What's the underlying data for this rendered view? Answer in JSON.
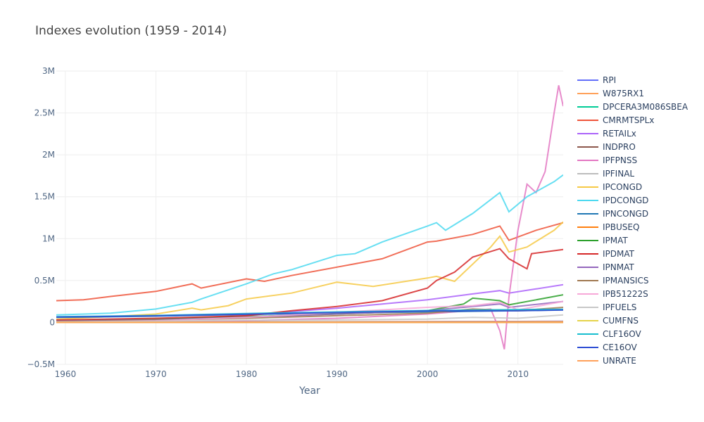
{
  "chart_data": {
    "type": "line",
    "title": "Indexes evolution (1959 - 2014)",
    "xlabel": "Year",
    "ylabel": "",
    "xlim": [
      1959,
      2015
    ],
    "ylim": [
      -500000,
      3000000
    ],
    "x_ticks": [
      1960,
      1970,
      1980,
      1990,
      2000,
      2010
    ],
    "x_tick_labels": [
      "1960",
      "1970",
      "1980",
      "1990",
      "2000",
      "2010"
    ],
    "y_ticks": [
      -500000,
      0,
      500000,
      1000000,
      1500000,
      2000000,
      2500000,
      3000000
    ],
    "y_tick_labels": [
      "−0.5M",
      "0",
      "0.5M",
      "1M",
      "1.5M",
      "2M",
      "2.5M",
      "3M"
    ],
    "grid": true,
    "legend_position": "right",
    "series": [
      {
        "name": "RPI",
        "color": "#636efa",
        "x": [
          1959,
          1970,
          1980,
          1990,
          2000,
          2010,
          2015
        ],
        "y": [
          2500,
          4000,
          6000,
          8000,
          10000,
          12000,
          13500
        ]
      },
      {
        "name": "W875RX1",
        "color": "#ffa15a",
        "x": [
          1959,
          1970,
          1980,
          1990,
          2000,
          2010,
          2015
        ],
        "y": [
          2200,
          3500,
          5000,
          7000,
          9000,
          10500,
          11500
        ]
      },
      {
        "name": "DPCERA3M086SBEA",
        "color": "#00cc96",
        "x": [
          1959,
          1970,
          1980,
          1990,
          2000,
          2010,
          2015
        ],
        "y": [
          20,
          30,
          45,
          60,
          80,
          100,
          110
        ]
      },
      {
        "name": "CMRMTSPLx",
        "color": "#ef553b",
        "x": [
          1959,
          1962,
          1965,
          1970,
          1974,
          1975,
          1980,
          1982,
          1985,
          1990,
          1995,
          2000,
          2001,
          2005,
          2008,
          2009,
          2012,
          2015
        ],
        "y": [
          260000,
          270000,
          310000,
          370000,
          460000,
          410000,
          520000,
          490000,
          560000,
          660000,
          760000,
          960000,
          970000,
          1050000,
          1150000,
          980000,
          1100000,
          1190000
        ]
      },
      {
        "name": "RETAILx",
        "color": "#ab63fa",
        "x": [
          1959,
          1970,
          1980,
          1985,
          1990,
          1995,
          2000,
          2005,
          2008,
          2009,
          2012,
          2015
        ],
        "y": [
          18000,
          30000,
          80000,
          130000,
          170000,
          220000,
          270000,
          340000,
          380000,
          350000,
          400000,
          450000
        ]
      },
      {
        "name": "INDPRO",
        "color": "#8c564b",
        "x": [
          1959,
          1970,
          1980,
          1990,
          2000,
          2010,
          2015
        ],
        "y": [
          22,
          36,
          50,
          63,
          93,
          90,
          105
        ]
      },
      {
        "name": "IPFPNSS",
        "color": "#e377c2",
        "x": [
          1959,
          1970,
          1980,
          1990,
          2000,
          2007,
          2008,
          2008.5,
          2009,
          2010,
          2011,
          2012,
          2013,
          2014,
          2014.5,
          2015
        ],
        "y": [
          1000,
          5000,
          20000,
          50000,
          100000,
          160000,
          -100000,
          -320000,
          300000,
          1100000,
          1650000,
          1550000,
          1800000,
          2500000,
          2830000,
          2580000
        ]
      },
      {
        "name": "IPFINAL",
        "color": "#bcbcbc",
        "x": [
          1959,
          1970,
          1980,
          1990,
          2000,
          2010,
          2015
        ],
        "y": [
          25,
          38,
          52,
          65,
          95,
          92,
          100
        ]
      },
      {
        "name": "IPCONGD",
        "color": "#f6c945",
        "x": [
          1959,
          1965,
          1970,
          1974,
          1975,
          1978,
          1980,
          1985,
          1990,
          1994,
          2000,
          2001,
          2003,
          2007,
          2008,
          2009,
          2011,
          2014,
          2015
        ],
        "y": [
          40000,
          70000,
          100000,
          170000,
          150000,
          200000,
          280000,
          350000,
          480000,
          430000,
          530000,
          550000,
          490000,
          900000,
          1030000,
          840000,
          900000,
          1100000,
          1200000
        ]
      },
      {
        "name": "IPDCONGD",
        "color": "#4dd9f0",
        "x": [
          1959,
          1965,
          1970,
          1974,
          1975,
          1980,
          1983,
          1985,
          1990,
          1992,
          1995,
          2000,
          2001,
          2002,
          2005,
          2008,
          2009,
          2011,
          2014,
          2015
        ],
        "y": [
          90000,
          110000,
          160000,
          240000,
          280000,
          460000,
          580000,
          630000,
          800000,
          820000,
          960000,
          1150000,
          1190000,
          1100000,
          1300000,
          1550000,
          1320000,
          1500000,
          1680000,
          1760000
        ]
      },
      {
        "name": "IPNCONGD",
        "color": "#1f77b4",
        "x": [
          1959,
          1970,
          1980,
          1990,
          2000,
          2010,
          2015
        ],
        "y": [
          60000,
          75000,
          95000,
          110000,
          125000,
          140000,
          150000
        ]
      },
      {
        "name": "IPBUSEQ",
        "color": "#ff7f0e",
        "x": [
          1959,
          1970,
          1980,
          1990,
          2000,
          2010,
          2015
        ],
        "y": [
          5,
          12,
          25,
          40,
          90,
          85,
          110
        ]
      },
      {
        "name": "IPMAT",
        "color": "#2ca02c",
        "x": [
          1959,
          1970,
          1980,
          1990,
          2000,
          2004,
          2005,
          2008,
          2009,
          2012,
          2015
        ],
        "y": [
          20000,
          40000,
          70000,
          100000,
          140000,
          220000,
          290000,
          260000,
          210000,
          270000,
          330000
        ]
      },
      {
        "name": "IPDMAT",
        "color": "#d62728",
        "x": [
          1959,
          1970,
          1980,
          1985,
          1990,
          1995,
          2000,
          2001,
          2003,
          2005,
          2008,
          2009,
          2011,
          2011.5,
          2015
        ],
        "y": [
          30000,
          50000,
          80000,
          140000,
          190000,
          260000,
          410000,
          500000,
          600000,
          780000,
          880000,
          760000,
          640000,
          820000,
          870000
        ]
      },
      {
        "name": "IPNMAT",
        "color": "#9467bd",
        "x": [
          1959,
          1970,
          1980,
          1990,
          2000,
          2008,
          2009,
          2015
        ],
        "y": [
          15000,
          30000,
          60000,
          100000,
          140000,
          220000,
          180000,
          250000
        ]
      },
      {
        "name": "IPMANSICS",
        "color": "#a07850",
        "x": [
          1959,
          1970,
          1980,
          1990,
          2000,
          2005,
          2010,
          2015
        ],
        "y": [
          10000,
          25000,
          50000,
          80000,
          110000,
          160000,
          140000,
          180000
        ]
      },
      {
        "name": "IPB51222S",
        "color": "#f7a8d8",
        "x": [
          1959,
          1970,
          1980,
          1990,
          2000,
          2005,
          2008,
          2010,
          2015
        ],
        "y": [
          5000,
          20000,
          60000,
          120000,
          180000,
          200000,
          240000,
          150000,
          250000
        ]
      },
      {
        "name": "IPFUELS",
        "color": "#c7c7c7",
        "x": [
          1959,
          1970,
          1980,
          1990,
          2000,
          2005,
          2010,
          2015
        ],
        "y": [
          5000,
          15000,
          25000,
          30000,
          40000,
          60000,
          50000,
          90000
        ]
      },
      {
        "name": "CUMFNS",
        "color": "#e5d34a",
        "x": [
          1959,
          1970,
          1980,
          1990,
          2000,
          2010,
          2015
        ],
        "y": [
          80,
          82,
          78,
          80,
          80,
          70,
          77
        ]
      },
      {
        "name": "CLF16OV",
        "color": "#17becf",
        "x": [
          1959,
          1970,
          1980,
          1990,
          2000,
          2010,
          2015
        ],
        "y": [
          68000,
          83000,
          107000,
          125000,
          142000,
          154000,
          157000
        ]
      },
      {
        "name": "CE16OV",
        "color": "#2e4ed4",
        "x": [
          1959,
          1970,
          1980,
          1990,
          2000,
          2010,
          2015
        ],
        "y": [
          64000,
          79000,
          99000,
          118000,
          137000,
          139000,
          148000
        ]
      },
      {
        "name": "UNRATE",
        "color": "#ffa15a",
        "x": [
          1959,
          1970,
          1980,
          1990,
          2000,
          2010,
          2015
        ],
        "y": [
          5.5,
          4.9,
          7.1,
          5.6,
          4.0,
          9.6,
          5.3
        ]
      }
    ]
  }
}
